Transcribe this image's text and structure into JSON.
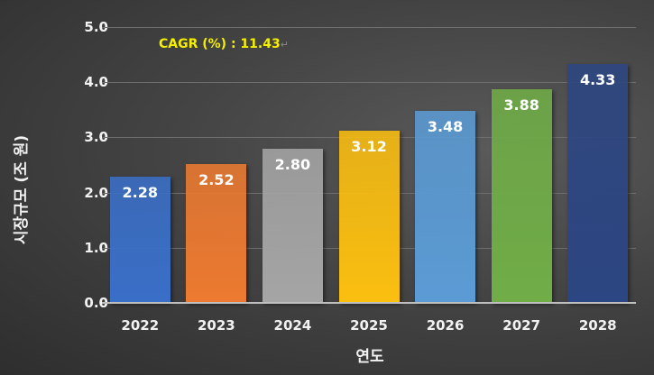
{
  "chart_data": {
    "type": "bar",
    "title": "",
    "xlabel": "연도",
    "ylabel": "시장규모 (조 원)",
    "categories": [
      "2022",
      "2023",
      "2024",
      "2025",
      "2026",
      "2027",
      "2028"
    ],
    "values": [
      2.28,
      2.52,
      2.8,
      3.12,
      3.48,
      3.88,
      4.33
    ],
    "value_labels": [
      "2.28",
      "2.52",
      "2.80",
      "3.12",
      "3.48",
      "3.88",
      "4.33"
    ],
    "bar_colors": [
      "#3a6fc8",
      "#ed7a30",
      "#a5a5a5",
      "#fbbf10",
      "#5b9bd5",
      "#70ad47",
      "#2c4683"
    ],
    "yticks": [
      "0.0",
      "1.0",
      "2.0",
      "3.0",
      "4.0",
      "5.0"
    ],
    "ylim": [
      0,
      5
    ],
    "grid": true,
    "legend": null,
    "annotations": [
      {
        "text": "CAGR (%) : 11.43",
        "color": "#f5f000"
      }
    ]
  },
  "annotation": {
    "text": "CAGR (%) : 11.43",
    "return_mark": "↵"
  }
}
